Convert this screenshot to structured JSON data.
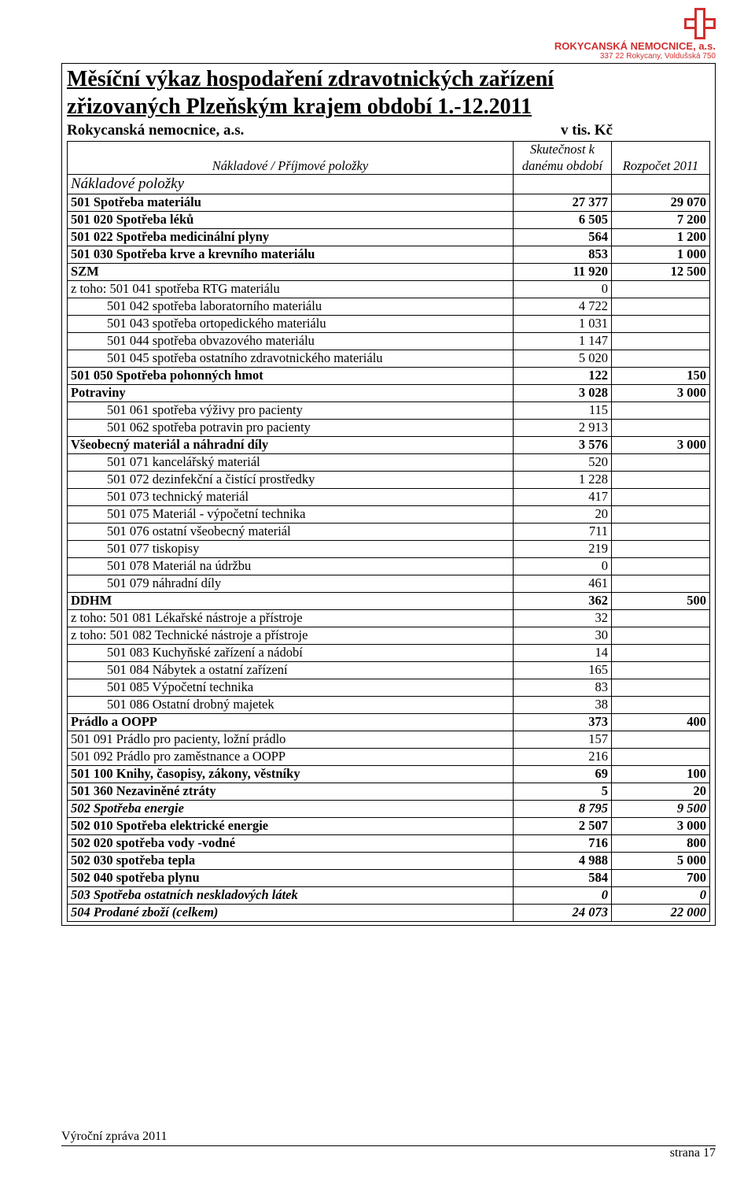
{
  "branding": {
    "name": "ROKYCANSKÁ NEMOCNICE, a.s.",
    "address": "337 22 Rokycany, Voldušská 750",
    "cross_color": "#d12f2f"
  },
  "title_line1": "Měsíční výkaz hospodaření zdravotnických zařízení",
  "title_line2": "zřizovaných Plzeňským krajem  období 1.-12.2011",
  "org": "Rokycanská nemocnice, a.s.",
  "unit": "v tis. Kč",
  "col_header_items": "Nákladové / Příjmové položky",
  "col_header_actual_l1": "Skutečnost  k",
  "col_header_actual_l2": "danému období",
  "col_header_budget": "Rozpočet 2011",
  "section_nakladove": "Nákladové položky",
  "rows": [
    {
      "label": "501 Spotřeba materiálu",
      "v1": "27 377",
      "v2": "29 070",
      "bold": true,
      "top": true
    },
    {
      "label": "501 020 Spotřeba léků",
      "v1": "6 505",
      "v2": "7 200",
      "bold": true,
      "top": true
    },
    {
      "label": "501 022 Spotřeba medicinální plyny",
      "v1": "564",
      "v2": "1 200",
      "bold": true,
      "top": true
    },
    {
      "label": "501 030 Spotřeba krve a krevního materiálu",
      "v1": "853",
      "v2": "1 000",
      "bold": true,
      "top": true
    },
    {
      "label": "SZM",
      "v1": "11 920",
      "v2": "12 500",
      "bold": true,
      "top": true
    },
    {
      "label": "z toho: 501 041 spotřeba RTG materiálu",
      "v1": "0",
      "v2": "",
      "top": true
    },
    {
      "label": "501 042 spotřeba laboratorního materiálu",
      "v1": "4 722",
      "v2": "",
      "indent": true,
      "top": true
    },
    {
      "label": "501 043 spotřeba ortopedického materiálu",
      "v1": "1 031",
      "v2": "",
      "indent": true,
      "top": true
    },
    {
      "label": "501 044 spotřeba obvazového materiálu",
      "v1": "1 147",
      "v2": "",
      "indent": true,
      "top": true
    },
    {
      "label": "501 045 spotřeba ostatního zdravotnického materiálu",
      "v1": "5 020",
      "v2": "",
      "indent": true,
      "top": true
    },
    {
      "label": "501 050 Spotřeba pohonných hmot",
      "v1": "122",
      "v2": "150",
      "bold": true,
      "top": true
    },
    {
      "label": "Potraviny",
      "v1": "3 028",
      "v2": "3 000",
      "bold": true,
      "top": true
    },
    {
      "label": "501 061 spotřeba výživy pro pacienty",
      "v1": "115",
      "v2": "",
      "indent": true,
      "top": true
    },
    {
      "label": "501 062 spotřeba potravin pro pacienty",
      "v1": "2 913",
      "v2": "",
      "indent": true,
      "top": true
    },
    {
      "label": "Všeobecný materiál a náhradní díly",
      "v1": "3 576",
      "v2": "3 000",
      "bold": true,
      "top": true
    },
    {
      "label": "501 071 kancelářský materiál",
      "v1": "520",
      "v2": "",
      "indent": true,
      "top": true
    },
    {
      "label": "501 072 dezinfekční a čistící prostředky",
      "v1": "1 228",
      "v2": "",
      "indent": true,
      "top": true
    },
    {
      "label": "501 073 technický materiál",
      "v1": "417",
      "v2": "",
      "indent": true,
      "top": true
    },
    {
      "label": "501 075 Materiál - výpočetní technika",
      "v1": "20",
      "v2": "",
      "indent": true,
      "top": true
    },
    {
      "label": "501 076 ostatní všeobecný materiál",
      "v1": "711",
      "v2": "",
      "indent": true,
      "top": true
    },
    {
      "label": "501 077 tiskopisy",
      "v1": "219",
      "v2": "",
      "indent": true,
      "top": true
    },
    {
      "label": "501 078 Materiál na údržbu",
      "v1": "0",
      "v2": "",
      "indent": true,
      "top": true
    },
    {
      "label": "501 079 náhradní díly",
      "v1": "461",
      "v2": "",
      "indent": true,
      "top": true
    },
    {
      "label": "DDHM",
      "v1": "362",
      "v2": "500",
      "bold": true,
      "top": true
    },
    {
      "label": "z toho: 501 081 Lékařské nástroje a přístroje",
      "v1": "32",
      "v2": "",
      "top": true
    },
    {
      "label": "z toho: 501 082 Technické nástroje a přístroje",
      "v1": "30",
      "v2": "",
      "top": true
    },
    {
      "label": "501 083 Kuchyňské zařízení a nádobí",
      "v1": "14",
      "v2": "",
      "indent": true,
      "top": true
    },
    {
      "label": "501 084 Nábytek a ostatní zařízení",
      "v1": "165",
      "v2": "",
      "indent": true,
      "top": true
    },
    {
      "label": "501 085 Výpočetní technika",
      "v1": "83",
      "v2": "",
      "indent": true,
      "top": true
    },
    {
      "label": "501 086 Ostatní drobný majetek",
      "v1": "38",
      "v2": "",
      "indent": true,
      "top": true
    },
    {
      "label": "Prádlo a OOPP",
      "v1": "373",
      "v2": "400",
      "bold": true,
      "top": true
    },
    {
      "label": "501 091 Prádlo pro pacienty, ložní prádlo",
      "v1": "157",
      "v2": "",
      "top": true
    },
    {
      "label": "501 092 Prádlo pro zaměstnance a OOPP",
      "v1": "216",
      "v2": "",
      "top": true
    },
    {
      "label": "501 100 Knihy, časopisy, zákony, věstníky",
      "v1": "69",
      "v2": "100",
      "bold": true,
      "top": true
    },
    {
      "label": "501 360 Nezaviněné ztráty",
      "v1": "5",
      "v2": "20",
      "bold": true,
      "top": true
    },
    {
      "label": "502 Spotřeba energie",
      "v1": "8 795",
      "v2": "9 500",
      "bold": true,
      "ital": true,
      "top": true
    },
    {
      "label": "502 010 Spotřeba elektrické energie",
      "v1": "2 507",
      "v2": "3 000",
      "bold": true,
      "top": true
    },
    {
      "label": "502 020 spotřeba vody -vodné",
      "v1": "716",
      "v2": "800",
      "bold": true,
      "top": true
    },
    {
      "label": "502 030 spotřeba tepla",
      "v1": "4 988",
      "v2": "5 000",
      "bold": true,
      "top": true
    },
    {
      "label": "502 040 spotřeba plynu",
      "v1": "584",
      "v2": "700",
      "bold": true,
      "top": true
    },
    {
      "label": "503 Spotřeba ostatních neskladových látek",
      "v1": "0",
      "v2": "0",
      "bold": true,
      "ital": true,
      "top": true
    },
    {
      "label": "504 Prodané zboží (celkem)",
      "v1": "24 073",
      "v2": "22 000",
      "bold": true,
      "ital": true,
      "top": true,
      "bottom": true
    }
  ],
  "footer_left": "Výroční zpráva 2011",
  "footer_right": "strana  17"
}
